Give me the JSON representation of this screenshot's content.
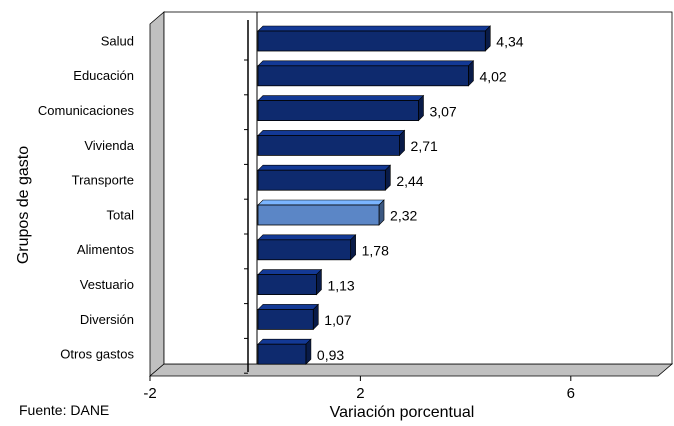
{
  "chart_data": {
    "type": "bar",
    "orientation": "horizontal",
    "categories": [
      "Salud",
      "Educación",
      "Comunicaciones",
      "Vivienda",
      "Transporte",
      "Total",
      "Alimentos",
      "Vestuario",
      "Diversión",
      "Otros gastos"
    ],
    "values": [
      4.34,
      4.02,
      3.07,
      2.71,
      2.44,
      2.32,
      1.78,
      1.13,
      1.07,
      0.93
    ],
    "value_labels": [
      "4,34",
      "4,02",
      "3,07",
      "2,71",
      "2,44",
      "2,32",
      "1,78",
      "1,13",
      "1,07",
      "0,93"
    ],
    "highlighted_category": "Total",
    "xlabel": "Variación porcentual",
    "ylabel": "Grupos de gasto",
    "xlim": [
      -2,
      8
    ],
    "xticks": [
      -2,
      2,
      6
    ],
    "xtick_labels": [
      "-2",
      "2",
      "6"
    ],
    "style": "3d",
    "grid": false,
    "legend": "none"
  },
  "source_note": "Fuente: DANE",
  "colors": {
    "bar": "#0e2a6e",
    "bar_highlight": "#5b86c6",
    "plot_background": "#ffffff",
    "wall": "#c0c0c0"
  }
}
